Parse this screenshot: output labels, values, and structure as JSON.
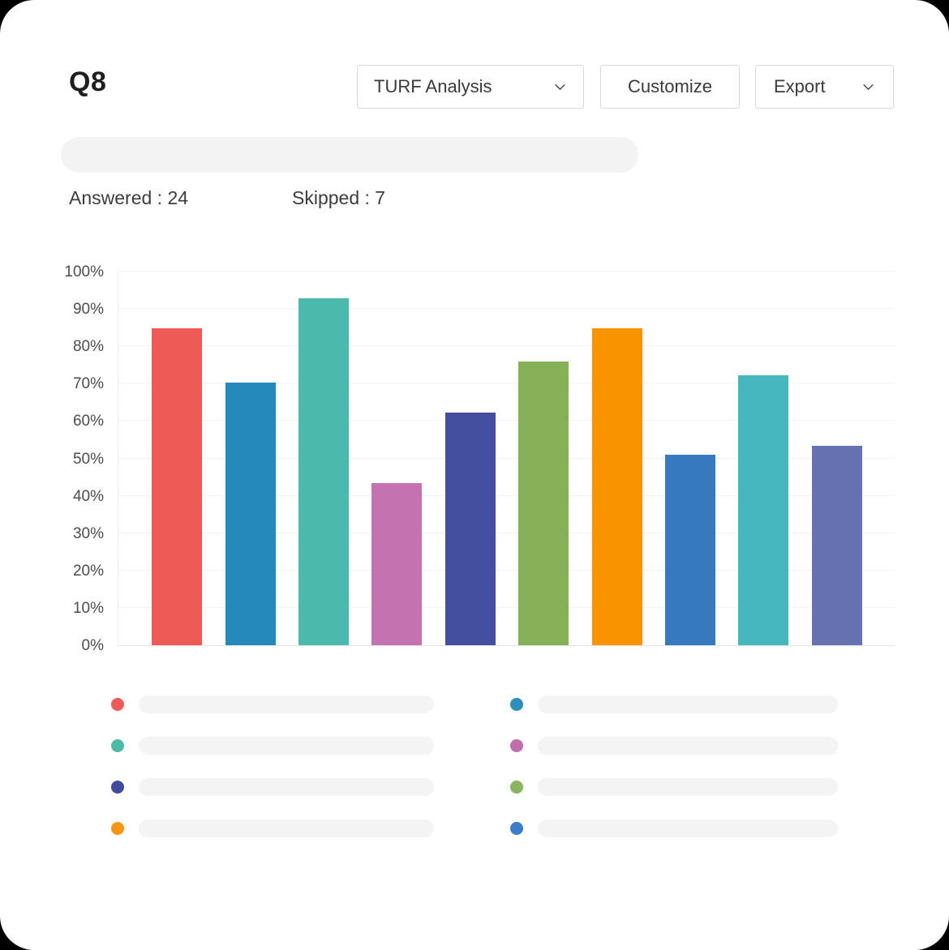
{
  "header": {
    "title": "Q8",
    "analysis_dropdown_value": "TURF Analysis",
    "customize_label": "Customize",
    "export_label": "Export"
  },
  "stats": {
    "answered": "Answered : 24",
    "skipped": "Skipped : 7"
  },
  "question": {
    "text_redacted_placeholder": true
  },
  "chart_data": {
    "type": "bar",
    "title": "",
    "xlabel": "",
    "ylabel": "",
    "ylim": [
      0,
      100
    ],
    "y_ticks": [
      "0%",
      "10%",
      "20%",
      "30%",
      "40%",
      "50%",
      "60%",
      "70%",
      "80%",
      "90%",
      "100%"
    ],
    "grid": true,
    "x_tick_labels_visible": false,
    "values": [
      85,
      70.5,
      93,
      43.5,
      62.5,
      76,
      85,
      51,
      72.5,
      53.5
    ],
    "colors": [
      "#EE5A56",
      "#2589BC",
      "#4BB9AC",
      "#C472B0",
      "#44509F",
      "#87B158",
      "#FA9300",
      "#3779BF",
      "#47B7BE",
      "#6671B2"
    ],
    "legend": {
      "position": "bottom",
      "columns": 2,
      "labels_redacted": true,
      "items": [
        {
          "color": "#EE5A56"
        },
        {
          "color": "#2E8FBC"
        },
        {
          "color": "#4CBBA5"
        },
        {
          "color": "#C36CAC"
        },
        {
          "color": "#3F4C9E"
        },
        {
          "color": "#8AB45E"
        },
        {
          "color": "#F9960F"
        },
        {
          "color": "#3D7CC9"
        }
      ]
    }
  }
}
